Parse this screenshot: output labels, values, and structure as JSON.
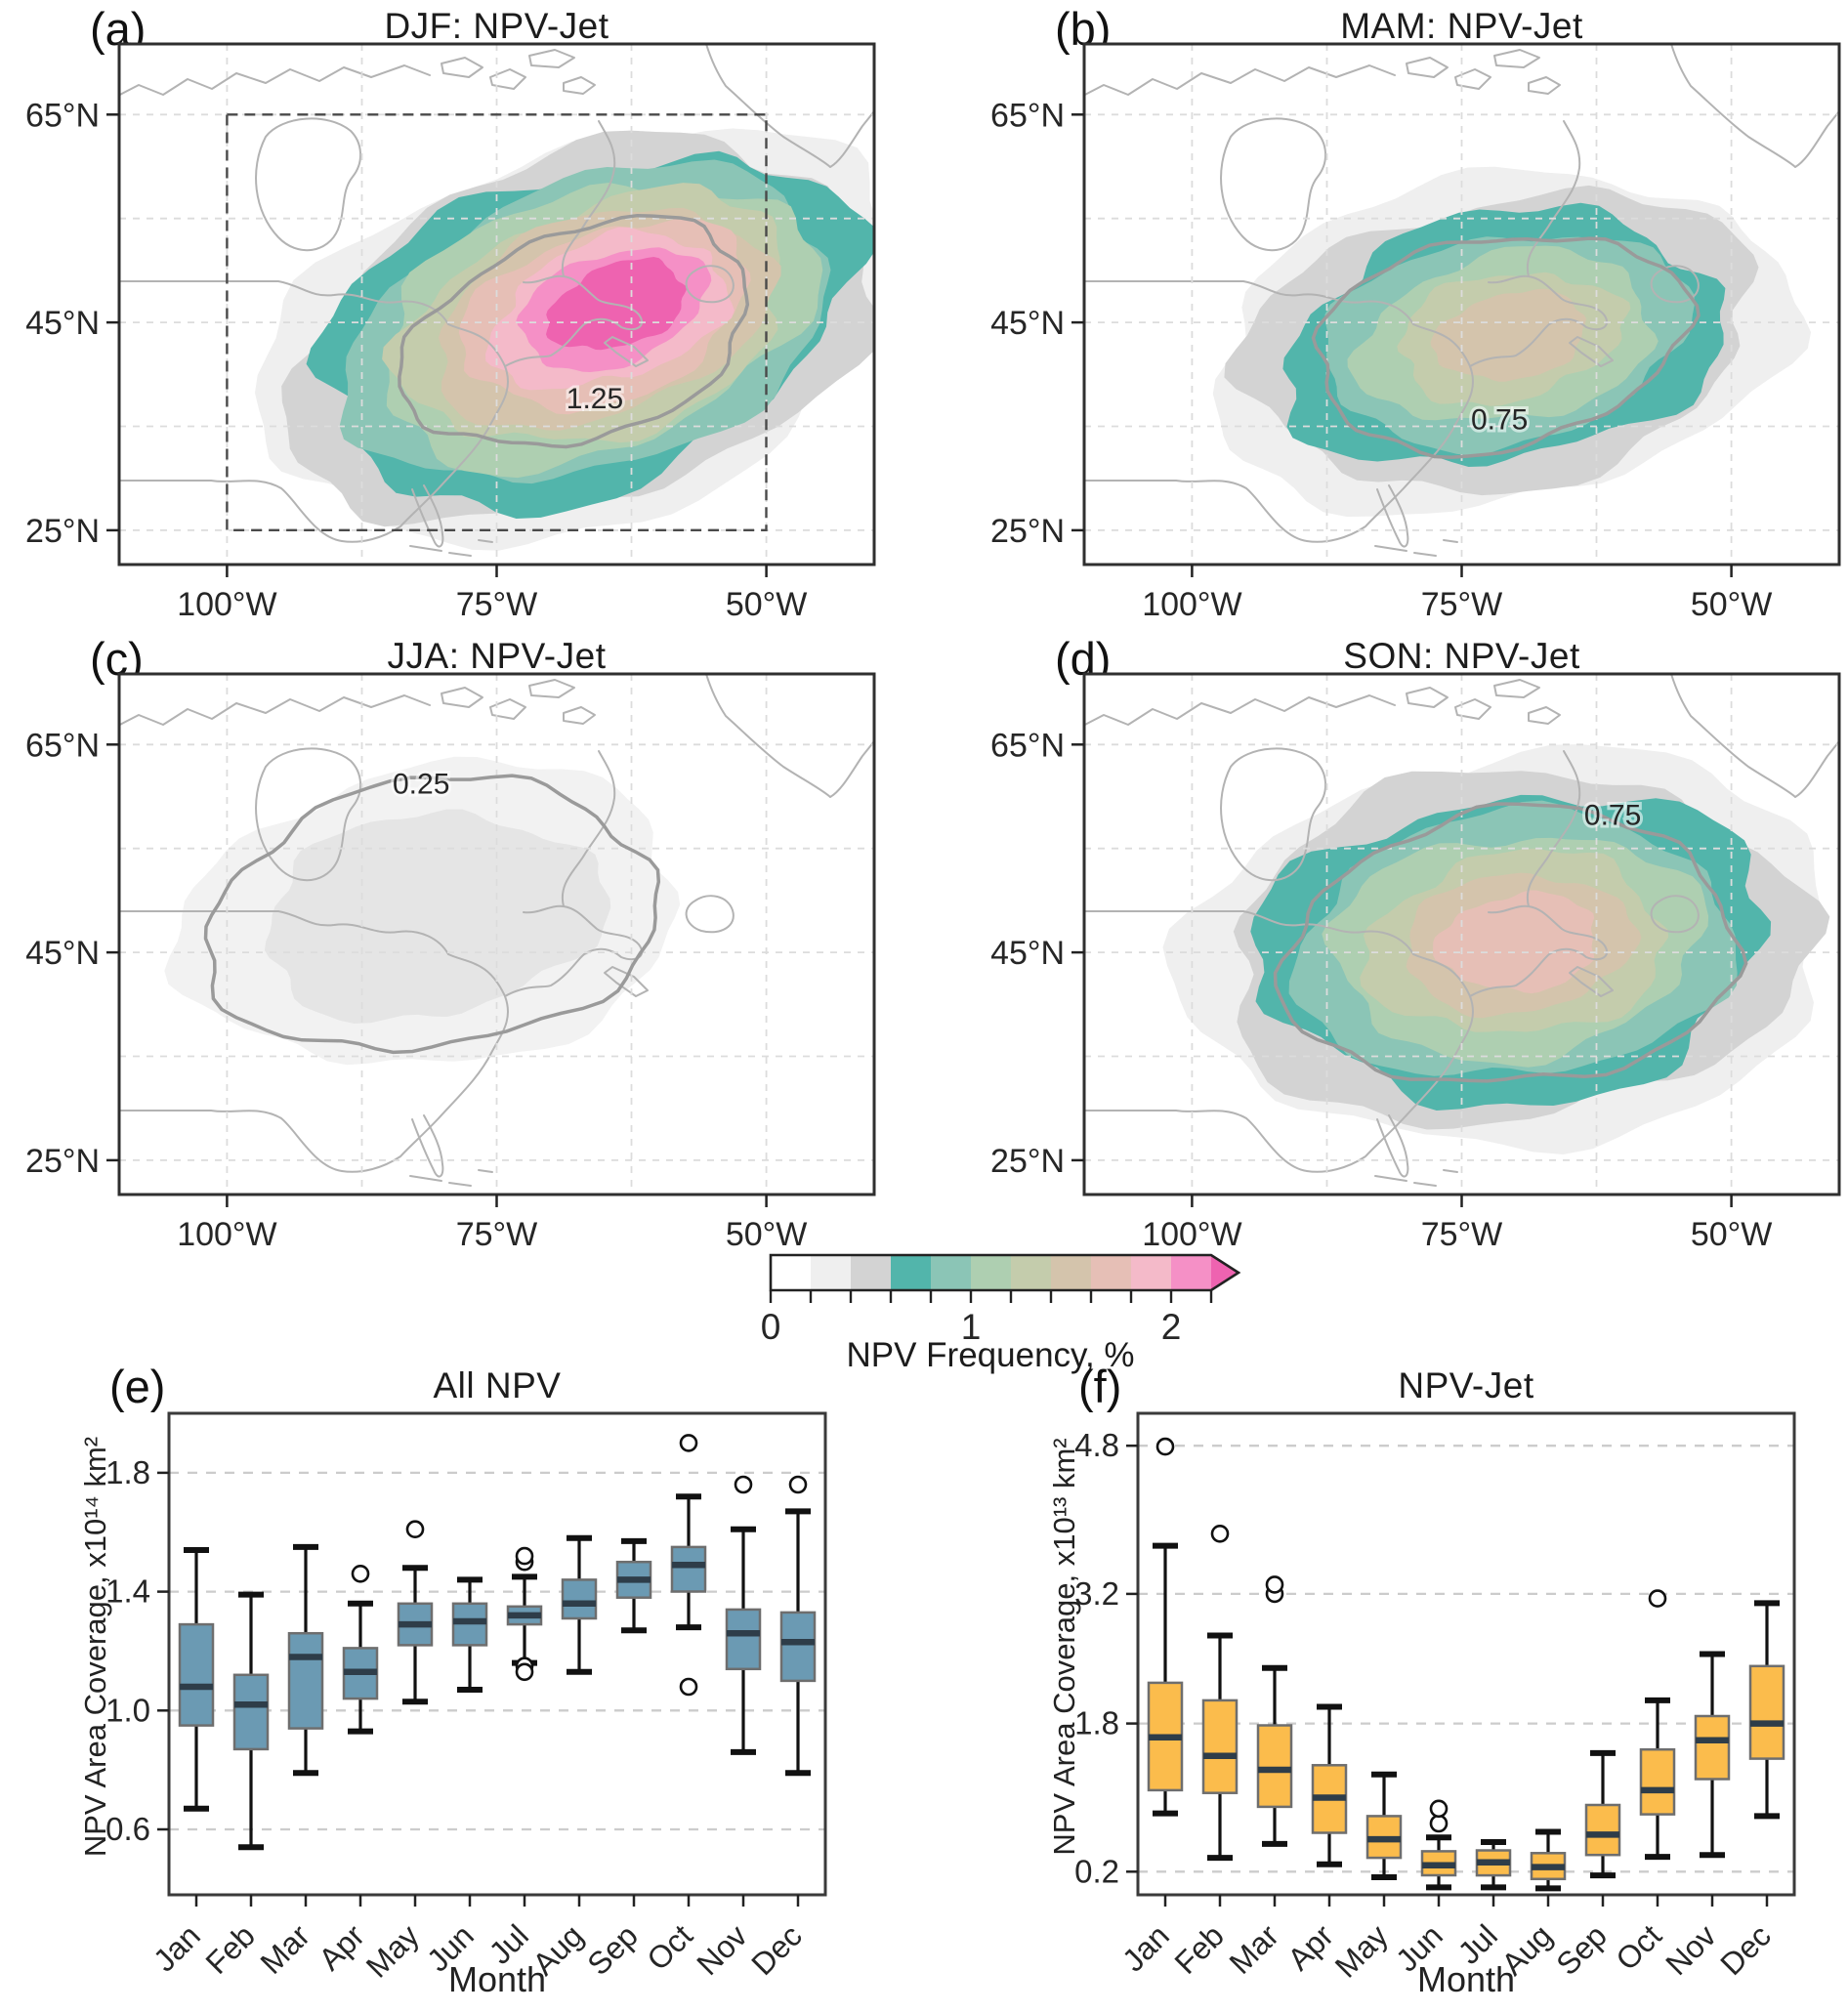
{
  "figure": {
    "background": "#ffffff",
    "map_palette": [
      "#ffffff",
      "#efefef",
      "#d3d3d3",
      "#52b5ab",
      "#8bc5b6",
      "#aecfb1",
      "#c4ccac",
      "#d4c4ac",
      "#e6bfb6",
      "#f4bac9",
      "#f590c6",
      "#ee63b0"
    ],
    "map_line_colors": {
      "coast": "#b3b3b3",
      "graticule": "#dcdcdc",
      "contour": "#9a9a9a",
      "region_box": "#4a4a4a",
      "border": "#2f2f2f"
    },
    "map_axes": {
      "yticks": [
        "65°N",
        "45°N",
        "25°N"
      ],
      "xticks": [
        "100°W",
        "75°W",
        "50°W"
      ]
    },
    "map_panels": [
      {
        "id": "a",
        "label": "(a)",
        "title": "DJF: NPV-Jet",
        "contour_label": "1.25"
      },
      {
        "id": "b",
        "label": "(b)",
        "title": "MAM: NPV-Jet",
        "contour_label": "0.75"
      },
      {
        "id": "c",
        "label": "(c)",
        "title": "JJA: NPV-Jet",
        "contour_label": "0.25"
      },
      {
        "id": "d",
        "label": "(d)",
        "title": "SON: NPV-Jet",
        "contour_label": "0.75"
      }
    ],
    "colorbar": {
      "title": "NPV Frequency, %",
      "tick_labels": [
        "0",
        "1",
        "2"
      ],
      "tick_values": [
        0,
        1,
        2
      ],
      "range": [
        0,
        2.2
      ],
      "segment_step": 0.2,
      "arrow": "right"
    }
  },
  "chart_data": [
    {
      "type": "boxplot",
      "panel_label": "(e)",
      "title": "All NPV",
      "xlabel": "Month",
      "ylabel": "NPV Area Coverage, x10¹⁴ km²",
      "box_color": "#6b9ab3",
      "median_color": "#2e3d49",
      "categories": [
        "Jan",
        "Feb",
        "Mar",
        "Apr",
        "May",
        "Jun",
        "Jul",
        "Aug",
        "Sep",
        "Oct",
        "Nov",
        "Dec"
      ],
      "yticks": [
        0.6,
        1.0,
        1.4,
        1.8
      ],
      "ylim": [
        0.38,
        2.0
      ],
      "boxes": [
        {
          "whislo": 0.67,
          "q1": 0.95,
          "med": 1.08,
          "q3": 1.29,
          "whishi": 1.54,
          "fliers": []
        },
        {
          "whislo": 0.54,
          "q1": 0.87,
          "med": 1.02,
          "q3": 1.12,
          "whishi": 1.39,
          "fliers": []
        },
        {
          "whislo": 0.79,
          "q1": 0.94,
          "med": 1.18,
          "q3": 1.26,
          "whishi": 1.55,
          "fliers": []
        },
        {
          "whislo": 0.93,
          "q1": 1.04,
          "med": 1.13,
          "q3": 1.21,
          "whishi": 1.36,
          "fliers": [
            1.46
          ]
        },
        {
          "whislo": 1.03,
          "q1": 1.22,
          "med": 1.29,
          "q3": 1.36,
          "whishi": 1.48,
          "fliers": [
            1.61
          ]
        },
        {
          "whislo": 1.07,
          "q1": 1.22,
          "med": 1.3,
          "q3": 1.36,
          "whishi": 1.44,
          "fliers": []
        },
        {
          "whislo": 1.16,
          "q1": 1.29,
          "med": 1.32,
          "q3": 1.35,
          "whishi": 1.45,
          "fliers": [
            1.5,
            1.52,
            1.15,
            1.13
          ]
        },
        {
          "whislo": 1.13,
          "q1": 1.31,
          "med": 1.36,
          "q3": 1.44,
          "whishi": 1.58,
          "fliers": []
        },
        {
          "whislo": 1.27,
          "q1": 1.38,
          "med": 1.44,
          "q3": 1.5,
          "whishi": 1.57,
          "fliers": []
        },
        {
          "whislo": 1.28,
          "q1": 1.4,
          "med": 1.49,
          "q3": 1.55,
          "whishi": 1.72,
          "fliers": [
            1.9,
            1.08
          ]
        },
        {
          "whislo": 0.86,
          "q1": 1.14,
          "med": 1.26,
          "q3": 1.34,
          "whishi": 1.61,
          "fliers": [
            1.76
          ]
        },
        {
          "whislo": 0.79,
          "q1": 1.1,
          "med": 1.23,
          "q3": 1.33,
          "whishi": 1.67,
          "fliers": [
            1.76
          ]
        }
      ]
    },
    {
      "type": "boxplot",
      "panel_label": "(f)",
      "title": "NPV-Jet",
      "xlabel": "Month",
      "ylabel": "NPV Area Coverage, x10¹³ km²",
      "box_color": "#fbbc4c",
      "median_color": "#2e3d49",
      "categories": [
        "Jan",
        "Feb",
        "Mar",
        "Apr",
        "May",
        "Jun",
        "Jul",
        "Aug",
        "Sep",
        "Oct",
        "Nov",
        "Dec"
      ],
      "yticks": [
        0.2,
        1.8,
        3.2,
        4.8
      ],
      "ylim": [
        -0.05,
        5.15
      ],
      "boxes": [
        {
          "whislo": 0.83,
          "q1": 1.08,
          "med": 1.65,
          "q3": 2.24,
          "whishi": 3.72,
          "fliers": [
            4.79
          ]
        },
        {
          "whislo": 0.35,
          "q1": 1.05,
          "med": 1.45,
          "q3": 2.05,
          "whishi": 2.75,
          "fliers": [
            3.85
          ]
        },
        {
          "whislo": 0.5,
          "q1": 0.9,
          "med": 1.3,
          "q3": 1.78,
          "whishi": 2.4,
          "fliers": [
            3.2,
            3.3
          ]
        },
        {
          "whislo": 0.28,
          "q1": 0.62,
          "med": 1.0,
          "q3": 1.35,
          "whishi": 1.98,
          "fliers": []
        },
        {
          "whislo": 0.14,
          "q1": 0.35,
          "med": 0.55,
          "q3": 0.8,
          "whishi": 1.25,
          "fliers": []
        },
        {
          "whislo": 0.03,
          "q1": 0.16,
          "med": 0.27,
          "q3": 0.42,
          "whishi": 0.57,
          "fliers": [
            0.72,
            0.88
          ]
        },
        {
          "whislo": 0.03,
          "q1": 0.16,
          "med": 0.3,
          "q3": 0.43,
          "whishi": 0.52,
          "fliers": []
        },
        {
          "whislo": 0.02,
          "q1": 0.12,
          "med": 0.25,
          "q3": 0.4,
          "whishi": 0.63,
          "fliers": []
        },
        {
          "whislo": 0.16,
          "q1": 0.38,
          "med": 0.6,
          "q3": 0.92,
          "whishi": 1.48,
          "fliers": []
        },
        {
          "whislo": 0.36,
          "q1": 0.82,
          "med": 1.08,
          "q3": 1.52,
          "whishi": 2.05,
          "fliers": [
            3.15
          ]
        },
        {
          "whislo": 0.38,
          "q1": 1.2,
          "med": 1.62,
          "q3": 1.88,
          "whishi": 2.55,
          "fliers": []
        },
        {
          "whislo": 0.8,
          "q1": 1.42,
          "med": 1.8,
          "q3": 2.42,
          "whishi": 3.1,
          "fliers": []
        }
      ]
    }
  ]
}
